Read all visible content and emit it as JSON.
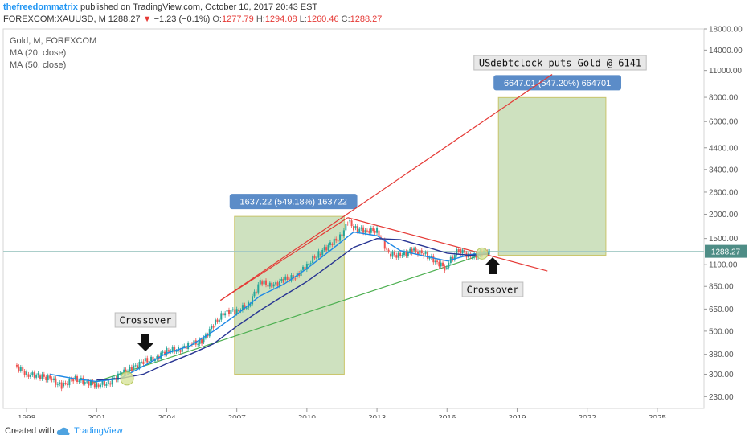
{
  "header": {
    "publisher": "thefreedommatrix",
    "published_text": "published on TradingView.com, October 10, 2017 20:43 EST",
    "symbol": "FOREXCOM:XAUUSD, M",
    "last": "1288.27",
    "change": "−1.23 (−0.1%)",
    "o_label": "O:",
    "o_value": "1277.79",
    "h_label": "H:",
    "h_value": "1294.08",
    "l_label": "L:",
    "l_value": "1260.46",
    "c_label": "C:",
    "c_value": "1288.27"
  },
  "legend": {
    "title": "Gold, M, FOREXCOM",
    "ma1": "MA (20, close)",
    "ma2": "MA (50, close)"
  },
  "footer": {
    "created_with": "Created with",
    "brand": "TradingView"
  },
  "colors": {
    "candle_up": "#26a69a",
    "candle_down": "#ef5350",
    "ma20": "#1e88e5",
    "ma50": "#283593",
    "resistance": "#e53935",
    "support": "#4caf50",
    "box_fill": "#a5c98a",
    "label_bg": "#5b8cc8",
    "price_tag": "#4e8d86"
  },
  "chart_data": {
    "type": "line",
    "title": "Gold, M, FOREXCOM",
    "xlabel": "",
    "ylabel": "",
    "y_scale": "log",
    "ylim": [
      200,
      18000
    ],
    "xlim": [
      1997.0,
      2027.0
    ],
    "x_ticks": [
      "1998",
      "2001",
      "2004",
      "2007",
      "2010",
      "2013",
      "2016",
      "2019",
      "2022",
      "2025"
    ],
    "y_ticks": [
      "18000.00",
      "14000.00",
      "11000.00",
      "8000.00",
      "6000.00",
      "4400.00",
      "3400.00",
      "2600.00",
      "2000.00",
      "1500.00",
      "1100.00",
      "850.00",
      "650.00",
      "500.00",
      "380.00",
      "300.00",
      "230.00"
    ],
    "last_price": 1288.27,
    "last_price_label": "1288.27",
    "series": [
      {
        "name": "Gold",
        "x": [
          1997.5,
          1998.0,
          1998.5,
          1999.0,
          1999.5,
          2000.0,
          2000.5,
          2001.0,
          2001.5,
          2002.0,
          2002.5,
          2003.0,
          2003.5,
          2004.0,
          2004.5,
          2005.0,
          2005.5,
          2006.0,
          2006.5,
          2007.0,
          2007.5,
          2008.0,
          2008.5,
          2009.0,
          2009.5,
          2010.0,
          2010.5,
          2011.0,
          2011.5,
          2011.75,
          2012.0,
          2012.5,
          2013.0,
          2013.5,
          2014.0,
          2014.5,
          2015.0,
          2015.5,
          2015.9,
          2016.5,
          2017.0,
          2017.5,
          2017.8
        ],
        "y": [
          335,
          300,
          295,
          285,
          260,
          285,
          275,
          265,
          270,
          300,
          320,
          350,
          360,
          400,
          400,
          430,
          440,
          540,
          630,
          640,
          680,
          900,
          850,
          920,
          950,
          1100,
          1250,
          1400,
          1550,
          1850,
          1700,
          1650,
          1650,
          1250,
          1220,
          1300,
          1250,
          1150,
          1060,
          1320,
          1200,
          1260,
          1288
        ]
      },
      {
        "name": "MA (20, close)",
        "x": [
          1999.0,
          2000.0,
          2001.0,
          2002.0,
          2003.0,
          2004.0,
          2005.0,
          2006.0,
          2007.0,
          2008.0,
          2009.0,
          2010.0,
          2011.0,
          2012.0,
          2013.0,
          2014.0,
          2015.0,
          2016.0,
          2017.0,
          2017.8
        ],
        "y": [
          300,
          285,
          275,
          285,
          330,
          385,
          420,
          500,
          610,
          760,
          870,
          1050,
          1300,
          1620,
          1550,
          1300,
          1220,
          1150,
          1240,
          1270
        ]
      },
      {
        "name": "MA (50, close)",
        "x": [
          2001.0,
          2002.0,
          2003.0,
          2004.0,
          2005.0,
          2006.0,
          2007.0,
          2008.0,
          2009.0,
          2010.0,
          2011.0,
          2012.0,
          2013.0,
          2014.0,
          2015.0,
          2016.0,
          2017.0,
          2017.8
        ],
        "y": [
          280,
          285,
          300,
          340,
          380,
          430,
          530,
          640,
          760,
          900,
          1100,
          1350,
          1500,
          1480,
          1370,
          1260,
          1230,
          1250
        ]
      }
    ],
    "trendlines": [
      {
        "name": "resistance-upper",
        "x": [
          2006.3,
          2020.5
        ],
        "y": [
          720,
          10500
        ]
      },
      {
        "name": "resistance-lower",
        "x": [
          2006.3,
          2011.75
        ],
        "y": [
          720,
          1920
        ]
      },
      {
        "name": "resistance-down",
        "x": [
          2011.75,
          2020.3
        ],
        "y": [
          1920,
          1020
        ]
      },
      {
        "name": "support",
        "x": [
          2000.8,
          2017.8
        ],
        "y": [
          270,
          1270
        ]
      }
    ],
    "boxes": [
      {
        "x": [
          2006.9,
          2011.6
        ],
        "y": [
          300,
          1950
        ],
        "label": "1637.22 (549.18%) 163722"
      },
      {
        "x": [
          2018.2,
          2022.8
        ],
        "y": [
          1230,
          7980
        ],
        "label": "6647.01 (547.20%) 664701"
      }
    ],
    "annotations": [
      {
        "text": "Crossover",
        "x": 2002.5,
        "y": 290,
        "arrow": "down"
      },
      {
        "text": "Crossover",
        "x": 2017.4,
        "y": 1200,
        "arrow": "up"
      },
      {
        "text": "USdebtclock puts Gold @ 6141"
      }
    ]
  }
}
